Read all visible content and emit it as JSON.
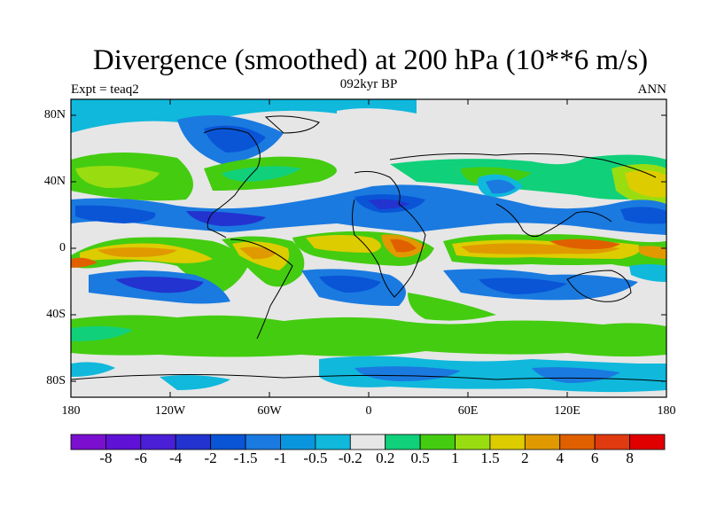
{
  "title": "Divergence (smoothed) at 200 hPa (10**6 m/s)",
  "subtitle": "092kyr BP",
  "left_label": "Expt = teaq2",
  "right_label": "ANN",
  "lat_ticks": [
    "80N",
    "40N",
    "0",
    "40S",
    "80S"
  ],
  "lon_ticks": [
    "180",
    "120W",
    "60W",
    "0",
    "60E",
    "120E",
    "180"
  ],
  "colorbar": {
    "labels": [
      "-8",
      "-6",
      "-4",
      "-2",
      "-1.5",
      "-1",
      "-0.5",
      "-0.2",
      "0.2",
      "0.5",
      "1",
      "1.5",
      "2",
      "4",
      "6",
      "8"
    ],
    "colors": [
      "#7b0fcf",
      "#5f12d6",
      "#4a1fd6",
      "#2233d0",
      "#0955d6",
      "#1a7ae0",
      "#0a96de",
      "#10b8dc",
      "#e6e6e6",
      "#10d07a",
      "#44cc11",
      "#99dd11",
      "#ddcc00",
      "#e09a00",
      "#e06000",
      "#e03a10",
      "#e00000"
    ]
  },
  "colors": {
    "neg_strong": "#2233d0",
    "neg_mid": "#1a7ae0",
    "neg_weak": "#10b8dc",
    "neutral": "#e6e6e6",
    "pos_weak": "#44cc11",
    "pos_mid": "#ddcc00",
    "pos_strong": "#e06000"
  }
}
